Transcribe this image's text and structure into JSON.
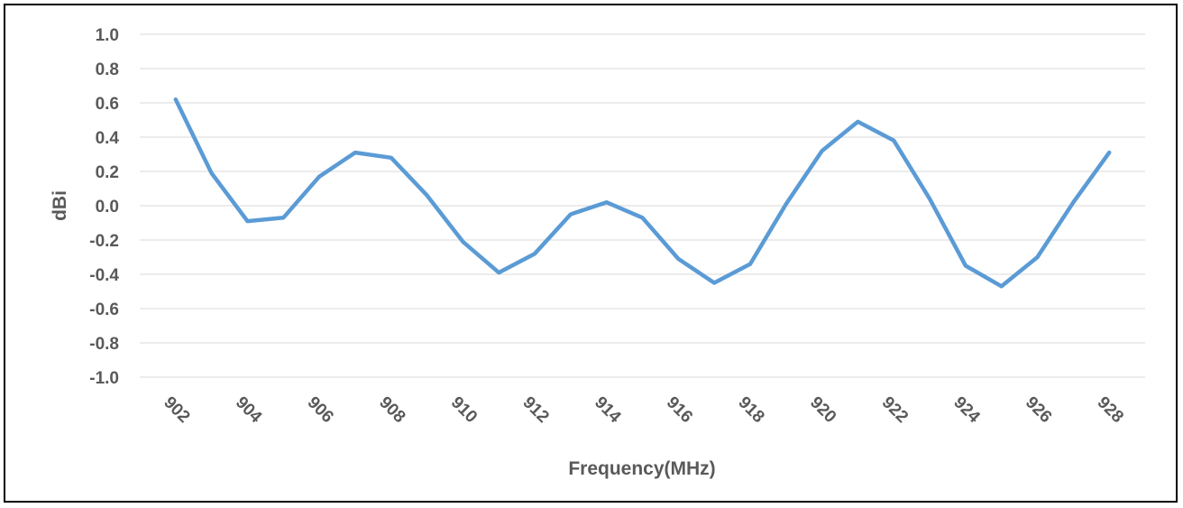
{
  "chart_data": {
    "type": "line",
    "title": "",
    "xlabel": "Frequency(MHz)",
    "ylabel": "dBi",
    "ylim": [
      -1.0,
      1.0
    ],
    "y_ticks": [
      "1.0",
      "0.8",
      "0.6",
      "0.4",
      "0.2",
      "0.0",
      "-0.2",
      "-0.4",
      "-0.6",
      "-0.8",
      "-1.0"
    ],
    "y_tick_values": [
      1.0,
      0.8,
      0.6,
      0.4,
      0.2,
      0.0,
      -0.2,
      -0.4,
      -0.6,
      -0.8,
      -1.0
    ],
    "x_ticks": [
      "902",
      "904",
      "906",
      "908",
      "910",
      "912",
      "914",
      "916",
      "918",
      "920",
      "922",
      "924",
      "926",
      "928"
    ],
    "x_tick_values": [
      902,
      904,
      906,
      908,
      910,
      912,
      914,
      916,
      918,
      920,
      922,
      924,
      926,
      928
    ],
    "grid": true,
    "legend": "none",
    "series": [
      {
        "color": "#5b9bd5",
        "x": [
          902,
          903,
          904,
          905,
          906,
          907,
          908,
          909,
          910,
          911,
          912,
          913,
          914,
          915,
          916,
          917,
          918,
          919,
          920,
          921,
          922,
          923,
          924,
          925,
          926,
          927,
          928
        ],
        "values": [
          0.62,
          0.19,
          -0.09,
          -0.07,
          0.17,
          0.31,
          0.28,
          0.06,
          -0.21,
          -0.39,
          -0.28,
          -0.05,
          0.02,
          -0.07,
          -0.31,
          -0.45,
          -0.34,
          0.01,
          0.32,
          0.49,
          0.38,
          0.04,
          -0.35,
          -0.47,
          -0.3,
          0.02,
          0.31
        ]
      }
    ]
  }
}
